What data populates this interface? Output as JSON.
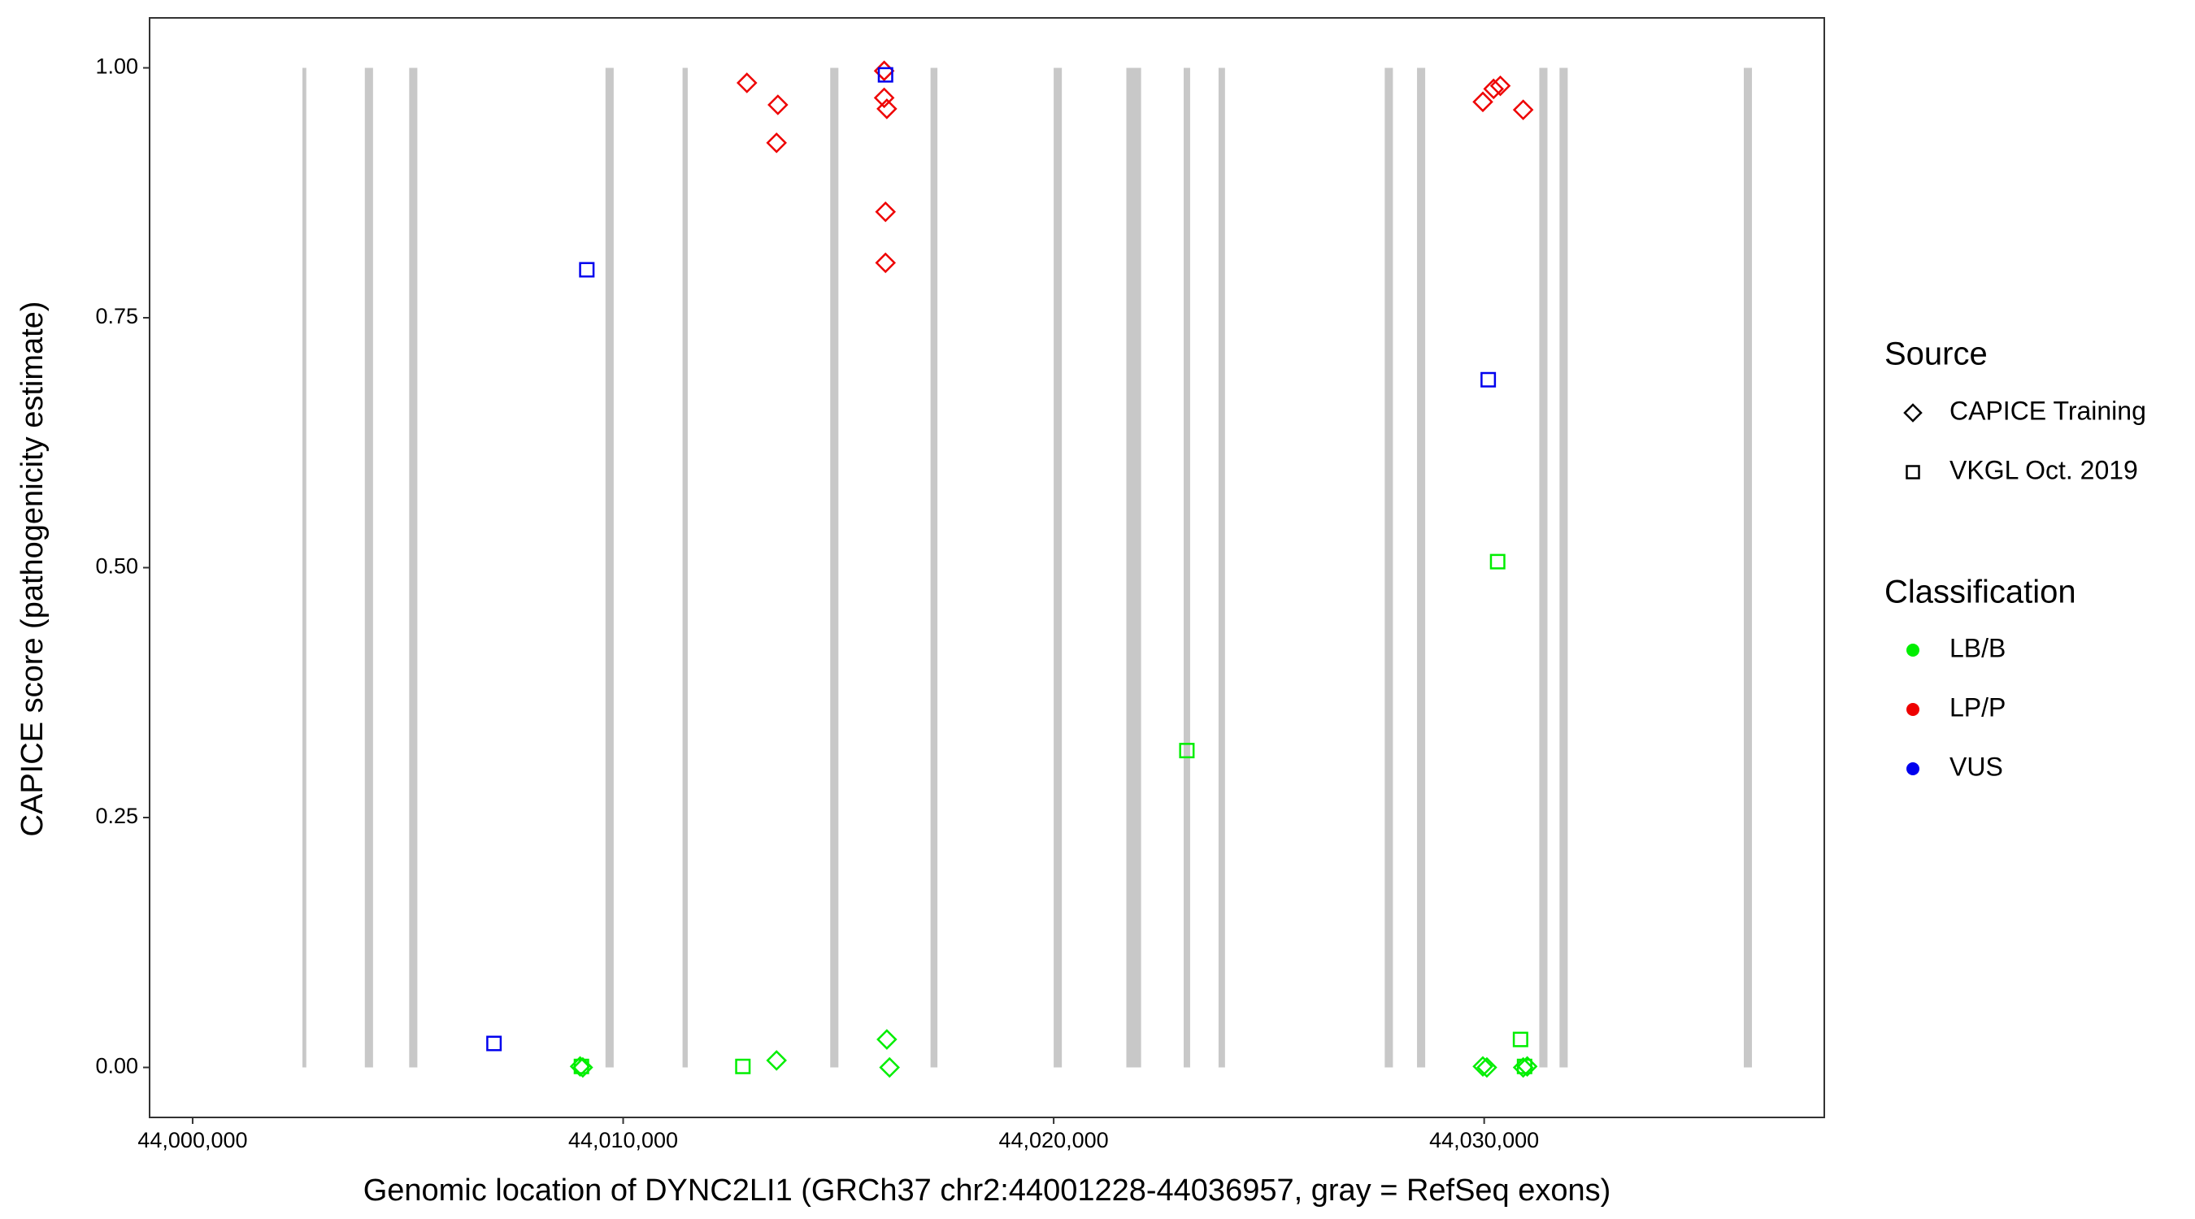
{
  "chart_data": {
    "type": "scatter",
    "x_label": "Genomic location of DYNC2LI1 (GRCh37 chr2:44001228-44036957, gray = RefSeq exons)",
    "y_label": "CAPICE score (pathogenicity estimate)",
    "xlim": [
      43999000,
      44037900
    ],
    "ylim": [
      -0.05,
      1.05
    ],
    "xticks": [
      {
        "value": 44000000,
        "label": "44,000,000"
      },
      {
        "value": 44010000,
        "label": "44,010,000"
      },
      {
        "value": 44020000,
        "label": "44,020,000"
      },
      {
        "value": 44030000,
        "label": "44,030,000"
      }
    ],
    "yticks": [
      {
        "value": 0,
        "label": "0.00"
      },
      {
        "value": 0.25,
        "label": "0.25"
      },
      {
        "value": 0.5,
        "label": "0.50"
      },
      {
        "value": 0.75,
        "label": "0.75"
      },
      {
        "value": 1,
        "label": "1.00"
      }
    ],
    "grid": false,
    "exon_color": "#c8c8c8",
    "exons": [
      [
        44002550,
        44002640
      ],
      [
        44004000,
        44004190
      ],
      [
        44005030,
        44005220
      ],
      [
        44009590,
        44009780
      ],
      [
        44011380,
        44011500
      ],
      [
        44014810,
        44015000
      ],
      [
        44017140,
        44017300
      ],
      [
        44020000,
        44020190
      ],
      [
        44021688,
        44022031
      ],
      [
        44023020,
        44023170
      ],
      [
        44023830,
        44023980
      ],
      [
        44027690,
        44027880
      ],
      [
        44028440,
        44028630
      ],
      [
        44031280,
        44031470
      ],
      [
        44031750,
        44031940
      ],
      [
        44036030,
        44036220
      ]
    ],
    "shape_legend": {
      "title": "Source",
      "labels": [
        "CAPICE Training",
        "VKGL Oct. 2019"
      ],
      "shapes": [
        "diamond",
        "square"
      ]
    },
    "color_legend": {
      "title": "Classification",
      "labels": [
        "LB/B",
        "LP/P",
        "VUS"
      ],
      "colors": [
        "#00ee00",
        "#ee0000",
        "#0000ee"
      ]
    },
    "series": [
      {
        "shape": "diamond",
        "color": "#ee0000",
        "x": [
          44012875,
          44013594,
          44013563,
          44016063,
          44016063,
          44016125,
          44016094,
          44016094,
          44029969,
          44030219,
          44030375,
          44030906
        ],
        "values": [
          0.985,
          0.963,
          0.925,
          0.997,
          0.97,
          0.959,
          0.856,
          0.805,
          0.966,
          0.979,
          0.982,
          0.958
        ]
      },
      {
        "shape": "diamond",
        "color": "#00ee00",
        "x": [
          44009000,
          44009062,
          44013563,
          44016125,
          44016188,
          44029969,
          44030062,
          44030906,
          44031000
        ],
        "values": [
          0.001,
          0,
          0.007,
          0.028,
          0,
          0.001,
          0,
          0,
          0.001
        ]
      },
      {
        "shape": "square",
        "color": "#0000ee",
        "x": [
          44007000,
          44009156,
          44016094,
          44030094
        ],
        "values": [
          0.024,
          0.798,
          0.993,
          0.688
        ]
      },
      {
        "shape": "square",
        "color": "#00ee00",
        "x": [
          44009031,
          44012781,
          44023094,
          44030313,
          44030844,
          44030938
        ],
        "values": [
          0.001,
          0.001,
          0.317,
          0.506,
          0.028,
          0.001
        ]
      }
    ]
  }
}
